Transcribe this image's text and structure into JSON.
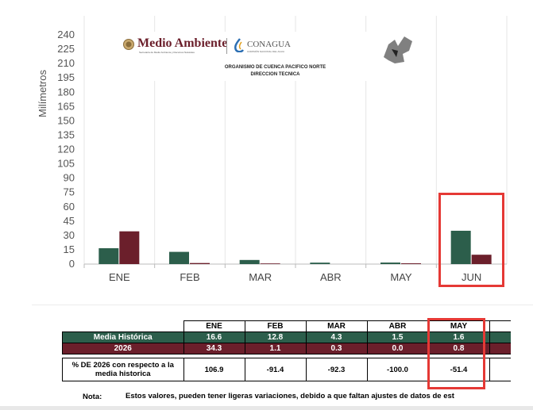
{
  "chart_data": {
    "type": "bar",
    "ylabel": "Milímetros",
    "ylim": [
      0,
      240
    ],
    "yticks": [
      0,
      15,
      30,
      45,
      60,
      75,
      90,
      105,
      120,
      135,
      150,
      165,
      180,
      195,
      210,
      225,
      240
    ],
    "categories": [
      "ENE",
      "FEB",
      "MAR",
      "ABR",
      "MAY",
      "JUN"
    ],
    "series": [
      {
        "name": "Media Histórica",
        "values": [
          16.6,
          12.8,
          4.3,
          1.5,
          1.6,
          34.9
        ],
        "color": "#2c5e4b"
      },
      {
        "name": "2026",
        "values": [
          34.3,
          1.1,
          0.3,
          0.0,
          0.8,
          9.8
        ],
        "color": "#6b1f2b"
      }
    ],
    "grid": true,
    "highlight_category": "JUN"
  },
  "header": {
    "logo_left": "Medio Ambiente",
    "logo_left_sub": "Secretaría de Medio Ambiente y Recursos Naturales",
    "logo_right": "CONAGUA",
    "logo_right_sub": "COMISIÓN NACIONAL DEL AGUA",
    "org_line1": "ORGANISMO DE CUENCA PACIFICO NORTE",
    "org_line2": "DIRECCION TECNICA"
  },
  "table": {
    "months": [
      "ENE",
      "FEB",
      "MAR",
      "ABR",
      "MAY"
    ],
    "media_label": "Media Histórica",
    "media_values": [
      "16.6",
      "12.8",
      "4.3",
      "1.5",
      "1.6"
    ],
    "year_label": "2026",
    "year_values": [
      "34.3",
      "1.1",
      "0.3",
      "0.0",
      "0.8"
    ],
    "pct_label": "% DE 2026 con respecto a la media historica",
    "pct_values": [
      "106.9",
      "-91.4",
      "-92.3",
      "-100.0",
      "-51.4"
    ],
    "highlight_month": "MAY"
  },
  "note": {
    "label": "Nota:",
    "text": "Estos valores, pueden tener ligeras variaciones, debido a que faltan ajustes de datos de est"
  },
  "colors": {
    "media": "#2c5e4b",
    "year": "#6b1f2b",
    "highlight": "#e53935",
    "grid": "#e6e6e6"
  }
}
